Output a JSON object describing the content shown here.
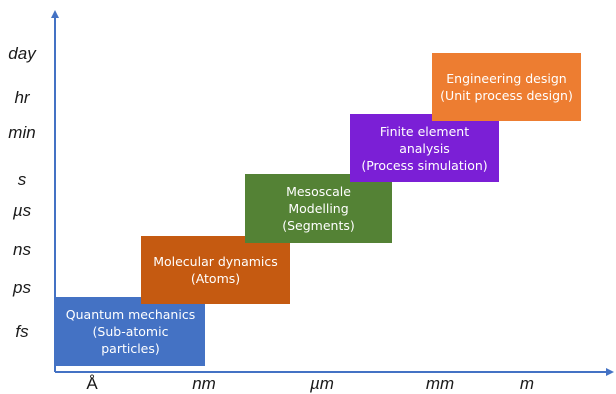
{
  "y_axis": {
    "labels": [
      "day",
      "hr",
      "min",
      "s",
      "µs",
      "ns",
      "ps",
      "fs"
    ]
  },
  "x_axis": {
    "labels": [
      "Å",
      "nm",
      "µm",
      "mm",
      "m"
    ]
  },
  "boxes": [
    {
      "id": "quantum",
      "lines": [
        "Quantum mechanics",
        "(Sub-atomic",
        "particles)"
      ],
      "color": "#4472c4"
    },
    {
      "id": "molecular",
      "lines": [
        "Molecular dynamics",
        "(Atoms)"
      ],
      "color": "#c55a11"
    },
    {
      "id": "mesoscale",
      "lines": [
        "Mesoscale",
        "Modelling",
        "(Segments)"
      ],
      "color": "#548235"
    },
    {
      "id": "finite-element",
      "lines": [
        "Finite element",
        "analysis",
        "(Process simulation)"
      ],
      "color": "#7b1fd6"
    },
    {
      "id": "engineering",
      "lines": [
        "Engineering design",
        "(Unit process design)"
      ],
      "color": "#ed7d31"
    }
  ],
  "colors": {
    "axis": "#4472c4"
  }
}
